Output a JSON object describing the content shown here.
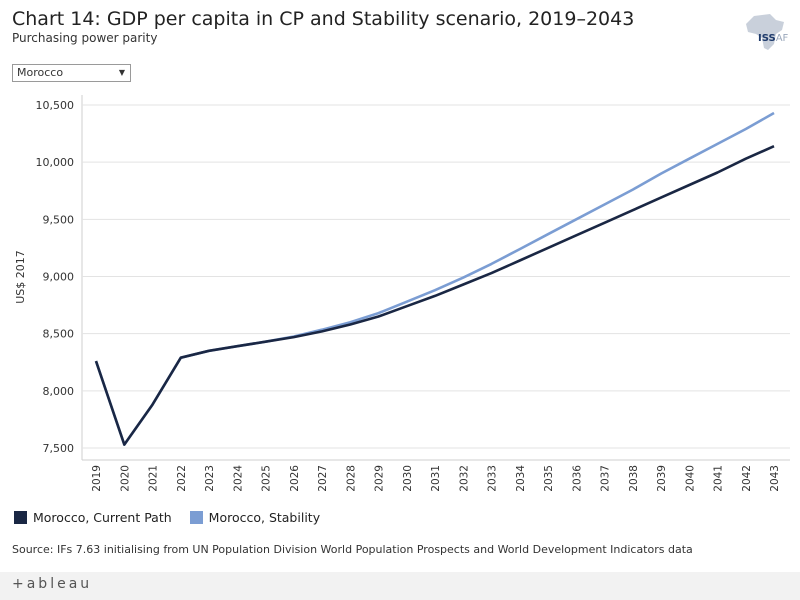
{
  "header": {
    "title": "Chart 14: GDP per capita in CP and Stability scenario, 2019–2043",
    "subtitle": "Purchasing power parity"
  },
  "logo": {
    "text_main": "ISS",
    "text_suffix": "AF"
  },
  "filter": {
    "selected": "Morocco"
  },
  "chart_data": {
    "type": "line",
    "title": "Chart 14: GDP per capita in CP and Stability scenario, 2019–2043",
    "subtitle": "Purchasing power parity",
    "xlabel": "",
    "ylabel": "US$ 2017",
    "ylim": [
      7500,
      10500
    ],
    "yticks": [
      7500,
      8000,
      8500,
      9000,
      9500,
      10000,
      10500
    ],
    "ytick_labels": [
      "7,500",
      "8,000",
      "8,500",
      "9,000",
      "9,500",
      "10,000",
      "10,500"
    ],
    "grid": true,
    "x": [
      "2019",
      "2020",
      "2021",
      "2022",
      "2023",
      "2024",
      "2025",
      "2026",
      "2027",
      "2028",
      "2029",
      "2030",
      "2031",
      "2032",
      "2033",
      "2034",
      "2035",
      "2036",
      "2037",
      "2038",
      "2039",
      "2040",
      "2041",
      "2042",
      "2043"
    ],
    "series": [
      {
        "name": "Morocco, Current Path",
        "color": "#1a2744",
        "values": [
          8260,
          7530,
          7880,
          8290,
          8350,
          8390,
          8430,
          8470,
          8520,
          8580,
          8650,
          8740,
          8830,
          8930,
          9030,
          9140,
          9250,
          9360,
          9470,
          9580,
          9690,
          9800,
          9910,
          10030,
          10140
        ]
      },
      {
        "name": "Morocco, Stability",
        "color": "#7b9dd3",
        "values": [
          8260,
          7530,
          7880,
          8290,
          8350,
          8390,
          8430,
          8475,
          8535,
          8600,
          8680,
          8780,
          8880,
          8990,
          9110,
          9240,
          9370,
          9500,
          9630,
          9760,
          9900,
          10030,
          10160,
          10290,
          10430
        ]
      }
    ],
    "legend": "bottom-left"
  },
  "source": "Source: IFs 7.63 initialising from UN Population Division World Population Prospects and World Development Indicators data",
  "footer": {
    "brand": "+ableau"
  }
}
